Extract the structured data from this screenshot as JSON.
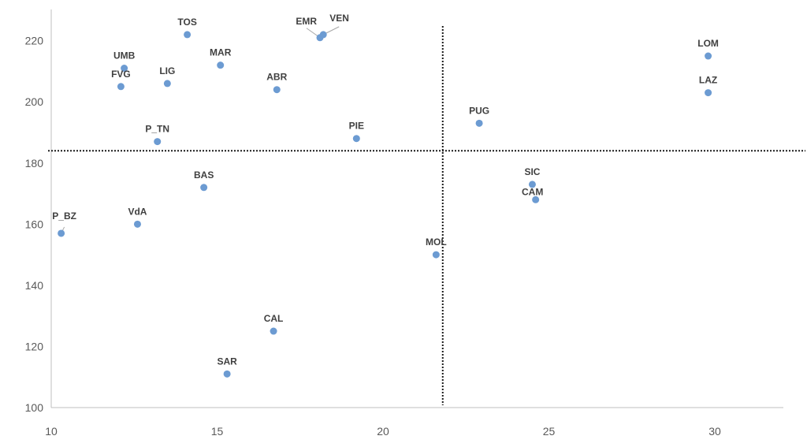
{
  "chart_data": {
    "type": "scatter",
    "title": "",
    "xlabel": "",
    "ylabel": "",
    "xlim": [
      10,
      32
    ],
    "ylim": [
      100,
      230
    ],
    "x_ticks": [
      10,
      15,
      20,
      25,
      30
    ],
    "y_ticks": [
      100,
      120,
      140,
      160,
      180,
      200,
      220
    ],
    "grid": false,
    "legend": "none",
    "marker_color": "#6c9bd2",
    "reference_lines": {
      "vertical_x": 21.8,
      "horizontal_y": 184
    },
    "points": [
      {
        "label": "TOS",
        "x": 14.1,
        "y": 222
      },
      {
        "label": "EMR",
        "x": 18.1,
        "y": 221
      },
      {
        "label": "VEN",
        "x": 18.2,
        "y": 222
      },
      {
        "label": "UMB",
        "x": 12.2,
        "y": 211
      },
      {
        "label": "MAR",
        "x": 15.1,
        "y": 212
      },
      {
        "label": "LIG",
        "x": 13.5,
        "y": 206
      },
      {
        "label": "FVG",
        "x": 12.1,
        "y": 205
      },
      {
        "label": "ABR",
        "x": 16.8,
        "y": 204
      },
      {
        "label": "P_TN",
        "x": 13.2,
        "y": 187
      },
      {
        "label": "PIE",
        "x": 19.2,
        "y": 188
      },
      {
        "label": "BAS",
        "x": 14.6,
        "y": 172
      },
      {
        "label": "VdA",
        "x": 12.6,
        "y": 160
      },
      {
        "label": "P_BZ",
        "x": 10.3,
        "y": 157
      },
      {
        "label": "MOL",
        "x": 21.6,
        "y": 150
      },
      {
        "label": "CAL",
        "x": 16.7,
        "y": 125
      },
      {
        "label": "SAR",
        "x": 15.3,
        "y": 111
      },
      {
        "label": "PUG",
        "x": 22.9,
        "y": 193
      },
      {
        "label": "SIC",
        "x": 24.5,
        "y": 173
      },
      {
        "label": "CAM",
        "x": 24.6,
        "y": 168
      },
      {
        "label": "LOM",
        "x": 29.8,
        "y": 215
      },
      {
        "label": "LAZ",
        "x": 29.8,
        "y": 203
      }
    ]
  }
}
